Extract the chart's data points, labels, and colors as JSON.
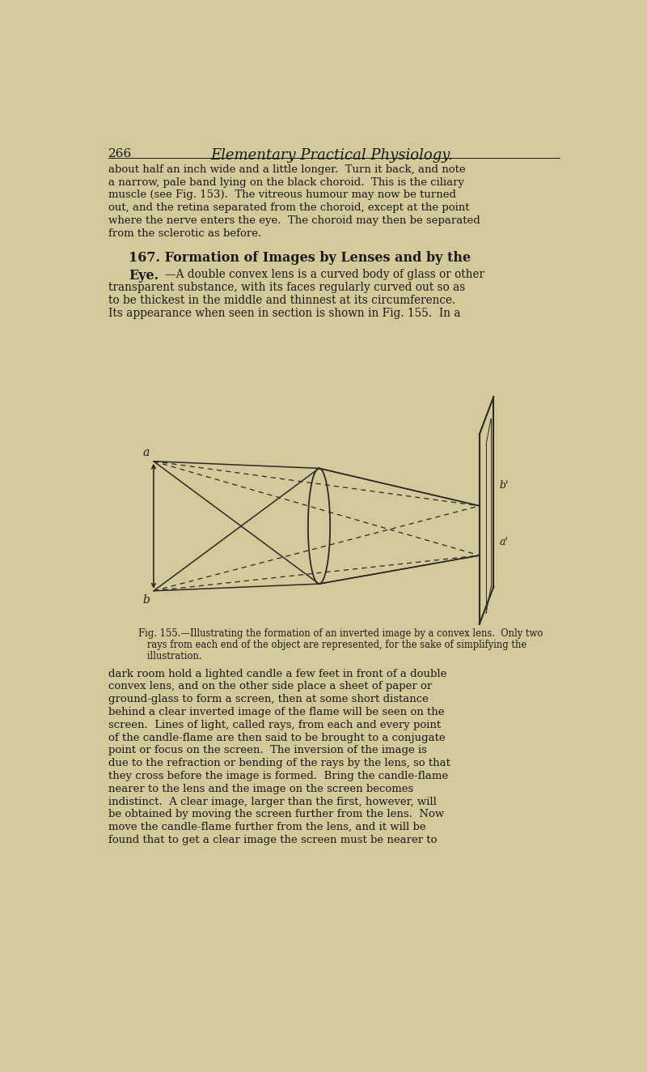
{
  "background_color": "#d4c99a",
  "page_width": 8.0,
  "page_height": 13.24,
  "text_color": "#1a1a1a",
  "header_number": "266",
  "header_title": "Elementary Practical Physiology.",
  "body_text_1_lines": [
    "about half an inch wide and a little longer.  Turn it back, and note",
    "a narrow, pale band lying on the black choroid.  This is the ciliary",
    "muscle (see Fig. 153).  The vitreous humour may now be turned",
    "out, and the retina separated from the choroid, except at the point",
    "where the nerve enters the eye.  The choroid may then be separated",
    "from the sclerotic as before."
  ],
  "section_heading_line1": "167. Formation of Images by Lenses and by the",
  "section_heading_line2_bold": "Eye.",
  "section_heading_line2_normal": "—A double convex lens is a curved body of glass or other",
  "section_body_lines": [
    "transparent substance, with its faces regularly curved out so as",
    "to be thickest in the middle and thinnest at its circumference.",
    "Its appearance when seen in section is shown in Fig. 155.  In a"
  ],
  "fig_caption_line1": "Fig. 155.—Illustrating the formation of an inverted image by a convex lens.  Only two",
  "fig_caption_line2": "   rays from each end of the object are represented, for the sake of simplifying the",
  "fig_caption_line3": "   illustration.",
  "body_text_2_lines": [
    "dark room hold a lighted candle a few feet in front of a double",
    "convex lens, and on the other side place a sheet of paper or",
    "ground-glass to form a screen, then at some short distance",
    "behind a clear inverted image of the flame will be seen on the",
    "screen.  Lines of light, called rays, from each and every point",
    "of the candle-flame are then said to be brought to a conjugate",
    "point or focus on the screen.  The inversion of the image is",
    "due to the refraction or bending of the rays by the lens, so that",
    "they cross before the image is formed.  Bring the candle-flame",
    "nearer to the lens and the image on the screen becomes",
    "indistinct.  A clear image, larger than the first, however, will",
    "be obtained by moving the screen further from the lens.  Now",
    "move the candle-flame further from the lens, and it will be",
    "found that to get a clear image the screen must be nearer to"
  ]
}
